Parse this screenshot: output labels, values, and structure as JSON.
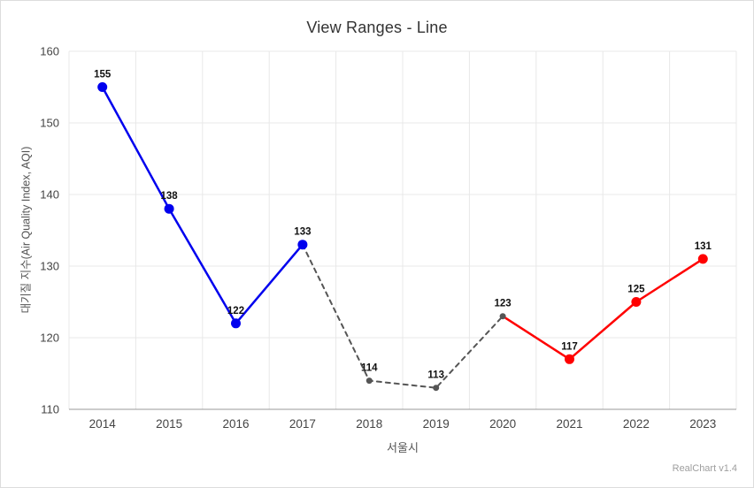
{
  "footer": {
    "watermark": "RealChart v1.4"
  },
  "chart_data": {
    "type": "line",
    "title": "View Ranges - Line",
    "xlabel": "서울시",
    "ylabel": "대기질 지수(Air Quality Index, AQI)",
    "categories": [
      "2014",
      "2015",
      "2016",
      "2017",
      "2018",
      "2019",
      "2020",
      "2021",
      "2022",
      "2023"
    ],
    "values": [
      155,
      138,
      122,
      133,
      114,
      113,
      123,
      117,
      125,
      131
    ],
    "value_labels": [
      "155",
      "138",
      "122",
      "133",
      "114",
      "113",
      "123",
      "117",
      "125",
      "131"
    ],
    "ylim": [
      110,
      160
    ],
    "yticks": [
      110,
      120,
      130,
      140,
      150,
      160
    ],
    "grid": true,
    "legend": "none",
    "segments": [
      {
        "name": "range-blue",
        "start_index": 0,
        "end_index": 3,
        "color": "#0000ee",
        "line_style": "solid",
        "line_width": 2.5,
        "point_radius": 5.5
      },
      {
        "name": "range-gray-dashed",
        "start_index": 3,
        "end_index": 6,
        "color": "#555555",
        "line_style": "dashed",
        "line_width": 2,
        "point_radius": 3.5
      },
      {
        "name": "range-red",
        "start_index": 6,
        "end_index": 9,
        "color": "#ff0000",
        "line_style": "solid",
        "line_width": 2.5,
        "point_radius": 5.5
      }
    ],
    "palette": {
      "grid_line": "#e8e8e8",
      "axis_line": "#999999",
      "tick_text": "#444444",
      "value_label_text": "#111111",
      "title_text": "#333333"
    }
  }
}
